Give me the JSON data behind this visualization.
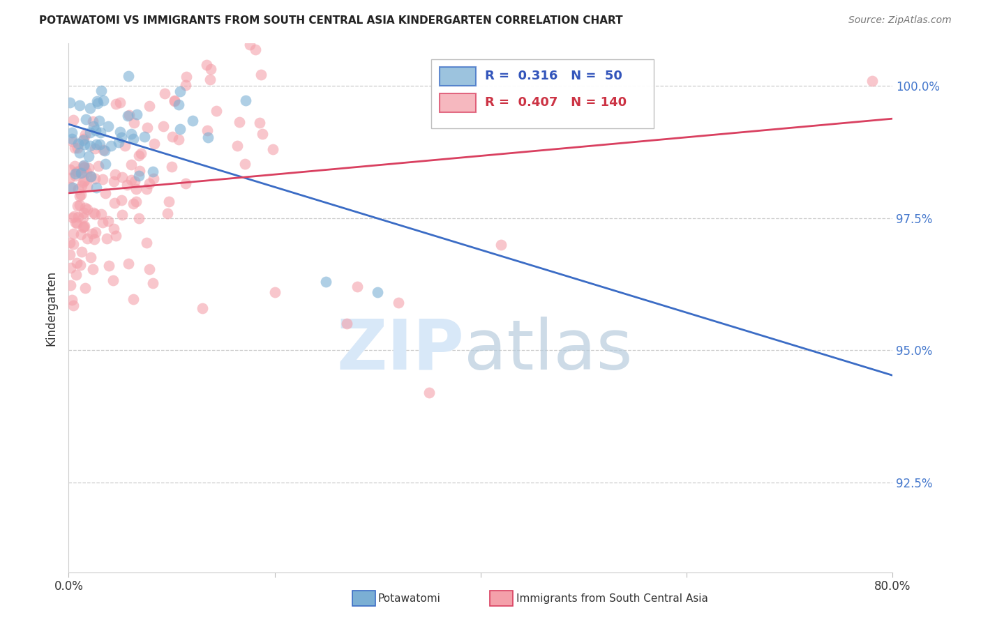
{
  "title": "POTAWATOMI VS IMMIGRANTS FROM SOUTH CENTRAL ASIA KINDERGARTEN CORRELATION CHART",
  "source": "Source: ZipAtlas.com",
  "ylabel": "Kindergarten",
  "ytick_labels": [
    "100.0%",
    "97.5%",
    "95.0%",
    "92.5%"
  ],
  "ytick_values": [
    1.0,
    0.975,
    0.95,
    0.925
  ],
  "xlim": [
    0.0,
    0.8
  ],
  "ylim": [
    0.908,
    1.008
  ],
  "blue_color": "#7BAFD4",
  "pink_color": "#F4A0AA",
  "blue_line_color": "#3B6CC5",
  "pink_line_color": "#D94060",
  "legend_R_blue": "0.316",
  "legend_N_blue": "50",
  "legend_R_pink": "0.407",
  "legend_N_pink": "140",
  "blue_R": 0.316,
  "pink_R": 0.407,
  "n_blue": 50,
  "n_pink": 140
}
